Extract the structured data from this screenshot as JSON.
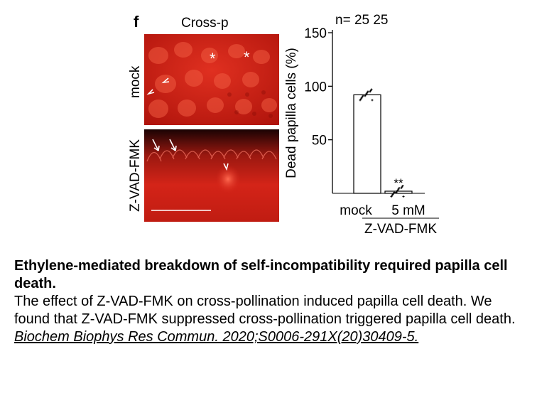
{
  "figure": {
    "panel_letter": "f",
    "column_title": "Cross-p",
    "row_labels": [
      "mock",
      "Z-VAD-FMK"
    ],
    "annotations": {
      "asterisk": "*",
      "significance": "**"
    },
    "scale_bar": true
  },
  "chart_data": {
    "type": "bar",
    "categories": [
      "mock",
      "5 mM"
    ],
    "group_label": "Z-VAD-FMK",
    "values": [
      92,
      2
    ],
    "n_label": "n= 25  25",
    "ylabel": "Dead papilla cells (%)",
    "ylim": [
      0,
      150
    ],
    "yticks": [
      50,
      100,
      150
    ],
    "significance": "**",
    "colors": {
      "bar_fill": "#ffffff",
      "bar_stroke": "#000000",
      "points": "#000000"
    }
  },
  "caption": {
    "title": "Ethylene-mediated breakdown of self-incompatibility required papilla cell death.",
    "body": "The effect of Z-VAD-FMK on cross-pollination induced papilla cell death. We found that Z-VAD-FMK suppressed cross-pollination triggered papilla cell death.",
    "reference": "Biochem Biophys Res Commun. 2020;S0006-291X(20)30409-5."
  },
  "colors": {
    "micrograph_red": "#d42418",
    "micrograph_dark": "#1a0303"
  }
}
